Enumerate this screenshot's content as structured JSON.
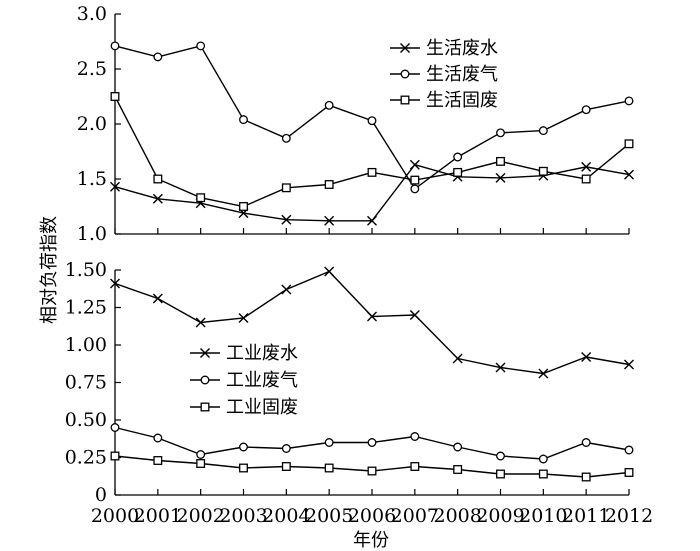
{
  "chart_data": [
    {
      "type": "line",
      "x": [
        2000,
        2001,
        2002,
        2003,
        2004,
        2005,
        2006,
        2007,
        2008,
        2009,
        2010,
        2011,
        2012
      ],
      "ylim": [
        1.0,
        3.0
      ],
      "yticks": [
        "1.0",
        "1.5",
        "2.0",
        "2.5",
        "3.0"
      ],
      "legend_position": "top-right",
      "series": [
        {
          "name": "生活废水",
          "marker": "x",
          "values": [
            1.43,
            1.32,
            1.28,
            1.19,
            1.13,
            1.12,
            1.12,
            1.63,
            1.52,
            1.51,
            1.53,
            1.61,
            1.54
          ]
        },
        {
          "name": "生活废气",
          "marker": "circle",
          "values": [
            2.71,
            2.61,
            2.71,
            2.04,
            1.87,
            2.17,
            2.03,
            1.41,
            1.7,
            1.92,
            1.94,
            2.13,
            2.21
          ]
        },
        {
          "name": "生活固废",
          "marker": "square",
          "values": [
            2.25,
            1.5,
            1.33,
            1.25,
            1.42,
            1.45,
            1.56,
            1.49,
            1.56,
            1.66,
            1.57,
            1.5,
            1.82
          ]
        }
      ]
    },
    {
      "type": "line",
      "x": [
        2000,
        2001,
        2002,
        2003,
        2004,
        2005,
        2006,
        2007,
        2008,
        2009,
        2010,
        2011,
        2012
      ],
      "ylim": [
        0,
        1.5
      ],
      "yticks": [
        "0",
        "0.25",
        "0.50",
        "0.75",
        "1.00",
        "1.25",
        "1.50"
      ],
      "legend_position": "center",
      "series": [
        {
          "name": "工业废水",
          "marker": "x",
          "values": [
            1.41,
            1.31,
            1.15,
            1.18,
            1.37,
            1.49,
            1.19,
            1.2,
            0.91,
            0.85,
            0.81,
            0.92,
            0.87
          ]
        },
        {
          "name": "工业废气",
          "marker": "circle",
          "values": [
            0.45,
            0.38,
            0.27,
            0.32,
            0.31,
            0.35,
            0.35,
            0.39,
            0.32,
            0.26,
            0.24,
            0.35,
            0.3
          ]
        },
        {
          "name": "工业固废",
          "marker": "square",
          "values": [
            0.26,
            0.23,
            0.21,
            0.18,
            0.19,
            0.18,
            0.16,
            0.19,
            0.17,
            0.14,
            0.14,
            0.12,
            0.15
          ]
        }
      ]
    }
  ],
  "x_tick_labels": [
    "2000",
    "2001",
    "2002",
    "2003",
    "2004",
    "2005",
    "2006",
    "2007",
    "2008",
    "2009",
    "2010",
    "2011",
    "2012"
  ],
  "ylabel": "相对负荷指数",
  "xlabel": "年份",
  "line_color": "#000000"
}
